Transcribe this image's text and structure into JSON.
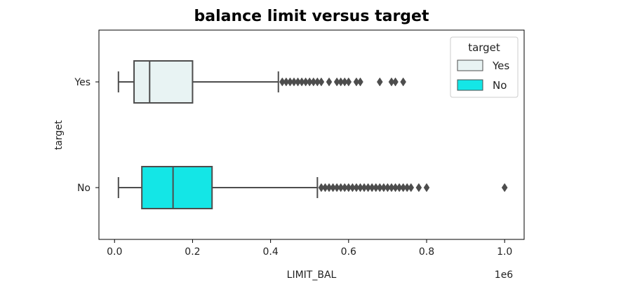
{
  "chart_data": {
    "type": "boxplot",
    "orientation": "horizontal",
    "title": "balance limit versus target",
    "xlabel": "LIMIT_BAL",
    "ylabel": "target",
    "x_offset_label": "1e6",
    "xlim": [
      -0.04,
      1.05
    ],
    "x_ticks": [
      0.0,
      0.2,
      0.4,
      0.6,
      0.8,
      1.0
    ],
    "x_tick_labels": [
      "0.0",
      "0.2",
      "0.4",
      "0.6",
      "0.8",
      "1.0"
    ],
    "categories": [
      "Yes",
      "No"
    ],
    "grid": false,
    "legend": {
      "title": "target",
      "placement": "top-right",
      "entries": [
        "Yes",
        "No"
      ]
    },
    "series": [
      {
        "name": "Yes",
        "color": "#e8f3f3",
        "whisker_low": 0.01,
        "q1": 0.05,
        "median": 0.09,
        "q3": 0.2,
        "whisker_high": 0.42,
        "outliers": [
          0.43,
          0.44,
          0.45,
          0.46,
          0.47,
          0.48,
          0.49,
          0.5,
          0.51,
          0.52,
          0.53,
          0.55,
          0.57,
          0.58,
          0.59,
          0.6,
          0.62,
          0.63,
          0.68,
          0.71,
          0.72,
          0.74
        ]
      },
      {
        "name": "No",
        "color": "#14e6e6",
        "whisker_low": 0.01,
        "q1": 0.07,
        "median": 0.15,
        "q3": 0.25,
        "whisker_high": 0.52,
        "outliers": [
          0.53,
          0.54,
          0.55,
          0.56,
          0.57,
          0.58,
          0.59,
          0.6,
          0.61,
          0.62,
          0.63,
          0.64,
          0.65,
          0.66,
          0.67,
          0.68,
          0.69,
          0.7,
          0.71,
          0.72,
          0.73,
          0.74,
          0.75,
          0.76,
          0.78,
          0.8,
          1.0
        ]
      }
    ]
  }
}
